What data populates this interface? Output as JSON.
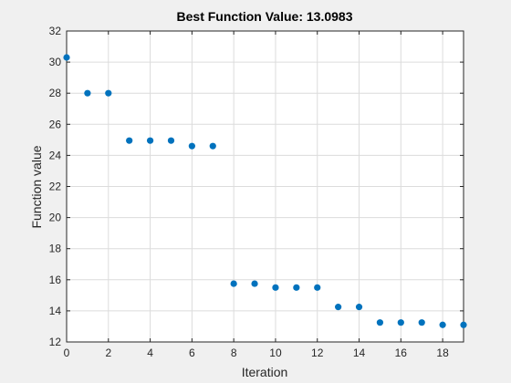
{
  "chart_data": {
    "type": "scatter",
    "title": "Best Function Value: 13.0983",
    "xlabel": "Iteration",
    "ylabel": "Function value",
    "xlim": [
      0,
      19
    ],
    "ylim": [
      12,
      32
    ],
    "xticks": [
      0,
      2,
      4,
      6,
      8,
      10,
      12,
      14,
      16,
      18
    ],
    "yticks": [
      12,
      14,
      16,
      18,
      20,
      22,
      24,
      26,
      28,
      30,
      32
    ],
    "grid": true,
    "series": [
      {
        "x": [
          0,
          1,
          2,
          3,
          4,
          5,
          6,
          7,
          8,
          9,
          10,
          11,
          12,
          13,
          14,
          15,
          16,
          17,
          18,
          19
        ],
        "y": [
          30.3,
          28.0,
          28.0,
          24.95,
          24.95,
          24.95,
          24.6,
          24.6,
          15.75,
          15.75,
          15.5,
          15.5,
          15.5,
          14.25,
          14.25,
          13.25,
          13.25,
          13.25,
          13.1,
          13.0983
        ]
      }
    ],
    "colors": {
      "marker": "#0072BD",
      "axes_background": "#ffffff",
      "figure_background": "#f0f0f0",
      "grid": "#dcdcdc",
      "axis": "#262626"
    }
  }
}
